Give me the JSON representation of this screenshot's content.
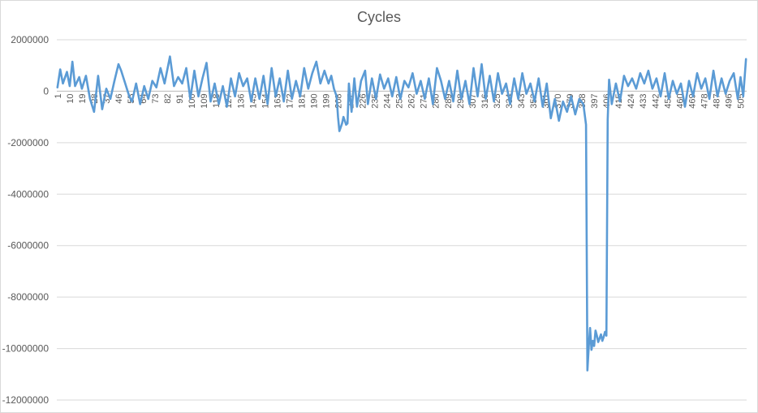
{
  "chart_data": {
    "type": "line",
    "title": "Cycles",
    "xlabel": "",
    "ylabel": "",
    "ylim": [
      -12000000,
      2000000
    ],
    "ytick_step": 2000000,
    "x_count": 509,
    "x_tick_labels": [
      1,
      10,
      19,
      28,
      37,
      46,
      55,
      64,
      73,
      82,
      91,
      100,
      109,
      118,
      127,
      136,
      145,
      154,
      163,
      172,
      181,
      190,
      199,
      208,
      217,
      226,
      235,
      244,
      253,
      262,
      271,
      280,
      289,
      298,
      307,
      316,
      325,
      334,
      343,
      352,
      361,
      370,
      379,
      388,
      397,
      406,
      415,
      424,
      433,
      442,
      451,
      460,
      469,
      478,
      487,
      496,
      505
    ],
    "grid": true,
    "legend": "none",
    "line_color": "#5b9bd5",
    "series": [
      {
        "name": "",
        "anchors": [
          [
            1,
            150000
          ],
          [
            3,
            850000
          ],
          [
            5,
            300000
          ],
          [
            8,
            750000
          ],
          [
            10,
            200000
          ],
          [
            12,
            1150000
          ],
          [
            14,
            200000
          ],
          [
            17,
            550000
          ],
          [
            19,
            100000
          ],
          [
            22,
            600000
          ],
          [
            25,
            -300000
          ],
          [
            28,
            -800000
          ],
          [
            31,
            600000
          ],
          [
            34,
            -700000
          ],
          [
            37,
            100000
          ],
          [
            40,
            -300000
          ],
          [
            43,
            400000
          ],
          [
            46,
            1050000
          ],
          [
            48,
            800000
          ],
          [
            51,
            300000
          ],
          [
            54,
            -200000
          ],
          [
            56,
            -400000
          ],
          [
            59,
            300000
          ],
          [
            62,
            -500000
          ],
          [
            65,
            200000
          ],
          [
            68,
            -300000
          ],
          [
            71,
            400000
          ],
          [
            74,
            150000
          ],
          [
            77,
            900000
          ],
          [
            80,
            300000
          ],
          [
            84,
            1350000
          ],
          [
            87,
            200000
          ],
          [
            90,
            550000
          ],
          [
            93,
            300000
          ],
          [
            96,
            900000
          ],
          [
            99,
            -300000
          ],
          [
            102,
            800000
          ],
          [
            105,
            -200000
          ],
          [
            108,
            500000
          ],
          [
            111,
            1100000
          ],
          [
            114,
            -400000
          ],
          [
            117,
            300000
          ],
          [
            120,
            -500000
          ],
          [
            123,
            200000
          ],
          [
            126,
            -600000
          ],
          [
            129,
            500000
          ],
          [
            132,
            -200000
          ],
          [
            135,
            700000
          ],
          [
            138,
            200000
          ],
          [
            141,
            500000
          ],
          [
            144,
            -400000
          ],
          [
            147,
            500000
          ],
          [
            150,
            -300000
          ],
          [
            153,
            600000
          ],
          [
            156,
            -500000
          ],
          [
            159,
            900000
          ],
          [
            162,
            -200000
          ],
          [
            165,
            500000
          ],
          [
            168,
            -400000
          ],
          [
            171,
            800000
          ],
          [
            174,
            -300000
          ],
          [
            177,
            400000
          ],
          [
            180,
            -200000
          ],
          [
            183,
            900000
          ],
          [
            186,
            100000
          ],
          [
            189,
            700000
          ],
          [
            192,
            1150000
          ],
          [
            195,
            300000
          ],
          [
            198,
            800000
          ],
          [
            201,
            300000
          ],
          [
            203,
            600000
          ],
          [
            205,
            100000
          ],
          [
            207,
            -200000
          ],
          [
            208,
            -1000000
          ],
          [
            209,
            -1550000
          ],
          [
            210,
            -1400000
          ],
          [
            211,
            -1250000
          ],
          [
            212,
            -1000000
          ],
          [
            213,
            -1150000
          ],
          [
            214,
            -1300000
          ],
          [
            215,
            -1250000
          ],
          [
            216,
            300000
          ],
          [
            218,
            -800000
          ],
          [
            220,
            500000
          ],
          [
            222,
            -600000
          ],
          [
            225,
            400000
          ],
          [
            228,
            800000
          ],
          [
            230,
            -500000
          ],
          [
            233,
            500000
          ],
          [
            236,
            -300000
          ],
          [
            239,
            650000
          ],
          [
            242,
            100000
          ],
          [
            245,
            500000
          ],
          [
            248,
            -200000
          ],
          [
            251,
            550000
          ],
          [
            254,
            -300000
          ],
          [
            257,
            400000
          ],
          [
            260,
            150000
          ],
          [
            263,
            700000
          ],
          [
            266,
            -100000
          ],
          [
            269,
            400000
          ],
          [
            272,
            -300000
          ],
          [
            275,
            500000
          ],
          [
            278,
            -500000
          ],
          [
            281,
            900000
          ],
          [
            284,
            400000
          ],
          [
            287,
            -300000
          ],
          [
            290,
            400000
          ],
          [
            293,
            -400000
          ],
          [
            296,
            800000
          ],
          [
            299,
            -300000
          ],
          [
            302,
            400000
          ],
          [
            305,
            -500000
          ],
          [
            308,
            900000
          ],
          [
            311,
            -200000
          ],
          [
            314,
            1050000
          ],
          [
            317,
            -300000
          ],
          [
            320,
            600000
          ],
          [
            323,
            -400000
          ],
          [
            326,
            700000
          ],
          [
            329,
            -100000
          ],
          [
            332,
            300000
          ],
          [
            335,
            -500000
          ],
          [
            338,
            500000
          ],
          [
            341,
            -300000
          ],
          [
            344,
            700000
          ],
          [
            347,
            -100000
          ],
          [
            350,
            300000
          ],
          [
            353,
            -400000
          ],
          [
            356,
            500000
          ],
          [
            359,
            -600000
          ],
          [
            362,
            300000
          ],
          [
            365,
            -1050000
          ],
          [
            368,
            -300000
          ],
          [
            371,
            -1150000
          ],
          [
            374,
            -400000
          ],
          [
            377,
            -800000
          ],
          [
            380,
            -200000
          ],
          [
            383,
            -900000
          ],
          [
            386,
            -300000
          ],
          [
            389,
            -500000
          ],
          [
            391,
            -1300000
          ],
          [
            392,
            -10850000
          ],
          [
            393,
            -9900000
          ],
          [
            394,
            -9200000
          ],
          [
            395,
            -10050000
          ],
          [
            396,
            -9700000
          ],
          [
            397,
            -9900000
          ],
          [
            398,
            -9300000
          ],
          [
            399,
            -9500000
          ],
          [
            400,
            -9750000
          ],
          [
            401,
            -9600000
          ],
          [
            402,
            -9450000
          ],
          [
            403,
            -9700000
          ],
          [
            404,
            -9550000
          ],
          [
            405,
            -9350000
          ],
          [
            406,
            -9500000
          ],
          [
            407,
            -1100000
          ],
          [
            408,
            450000
          ],
          [
            410,
            -500000
          ],
          [
            413,
            300000
          ],
          [
            416,
            -400000
          ],
          [
            419,
            600000
          ],
          [
            422,
            200000
          ],
          [
            425,
            500000
          ],
          [
            428,
            100000
          ],
          [
            431,
            700000
          ],
          [
            434,
            300000
          ],
          [
            437,
            800000
          ],
          [
            440,
            100000
          ],
          [
            443,
            500000
          ],
          [
            446,
            -200000
          ],
          [
            449,
            700000
          ],
          [
            452,
            -300000
          ],
          [
            455,
            400000
          ],
          [
            458,
            -100000
          ],
          [
            461,
            300000
          ],
          [
            464,
            -600000
          ],
          [
            467,
            400000
          ],
          [
            470,
            -200000
          ],
          [
            473,
            700000
          ],
          [
            476,
            100000
          ],
          [
            479,
            500000
          ],
          [
            482,
            -300000
          ],
          [
            485,
            800000
          ],
          [
            488,
            -200000
          ],
          [
            491,
            500000
          ],
          [
            494,
            -100000
          ],
          [
            497,
            400000
          ],
          [
            500,
            700000
          ],
          [
            503,
            -300000
          ],
          [
            505,
            550000
          ],
          [
            507,
            -200000
          ],
          [
            509,
            1250000
          ]
        ]
      }
    ]
  }
}
